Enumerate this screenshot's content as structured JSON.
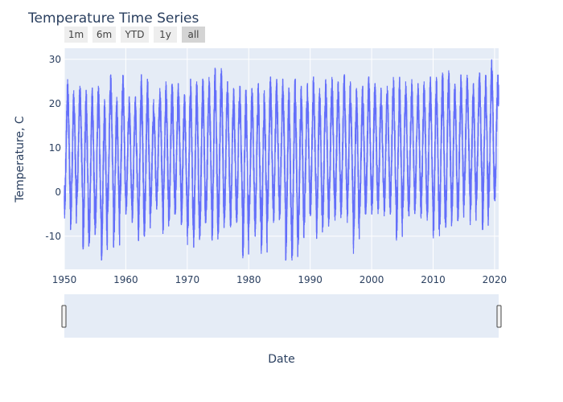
{
  "chart_data": {
    "type": "line",
    "title": "Temperature Time Series",
    "xlabel": "Date",
    "ylabel": "Temperature, C",
    "xlim": [
      "1950-01-01",
      "2020-08-31"
    ],
    "ylim": [
      -17.5,
      32.5
    ],
    "x_ticks": [
      "1950",
      "1960",
      "1970",
      "1980",
      "1990",
      "2000",
      "2010",
      "2020"
    ],
    "y_ticks": [
      -10,
      0,
      10,
      20,
      30
    ],
    "grid": true,
    "range_selector": [
      "1m",
      "6m",
      "YTD",
      "1y",
      "all"
    ],
    "active_range": "all",
    "range_slider": true,
    "series": [
      {
        "color": "#636efa",
        "x_start": "1950-01-01",
        "x_end": "2020-08-31",
        "yearly_max": [
          25.5,
          23,
          24,
          23,
          23.5,
          24,
          21,
          26.5,
          21.5,
          26.5,
          21.5,
          21.5,
          26.5,
          25.5,
          21,
          23.5,
          25,
          24.5,
          24.5,
          22,
          25.5,
          25,
          25.5,
          26,
          28,
          28,
          25,
          23.5,
          24,
          23,
          23.5,
          24.5,
          23,
          26,
          25.5,
          25.5,
          23.5,
          25.5,
          24,
          24.5,
          26,
          23.5,
          25.5,
          26,
          25,
          26.5,
          25,
          23.5,
          24,
          26,
          24.5,
          23.5,
          24,
          26,
          26,
          25,
          25.5,
          24.5,
          25,
          26,
          26,
          27,
          27.5,
          24.5,
          26.5,
          26.5,
          24.5,
          27,
          26.5,
          30,
          26.5
        ],
        "yearly_min": [
          -6,
          -8.5,
          -3,
          -13,
          -11.5,
          -9.5,
          -15.5,
          -5,
          -12.5,
          -5,
          -5,
          -7,
          -11,
          -10,
          -5,
          -4,
          -9.5,
          -6.5,
          -5,
          -7.5,
          -12,
          -12.5,
          -10.5,
          -7,
          -11,
          -9.5,
          -7,
          -8,
          -7,
          -15,
          -8,
          -10,
          -14,
          -7,
          -7,
          -6,
          -15.5,
          -15.5,
          -12,
          -7.5,
          -5.5,
          -10.5,
          -8,
          -7,
          -6.5,
          -5,
          -7,
          -14,
          -6,
          -5,
          -5,
          -5,
          -5.5,
          -5,
          -11,
          -6,
          -5.5,
          -5,
          -6,
          -6.5,
          -10.5,
          -10,
          -8,
          -7,
          -6.5,
          -3,
          -7.5,
          -3,
          -8.5,
          -3.5,
          -2
        ]
      }
    ]
  }
}
